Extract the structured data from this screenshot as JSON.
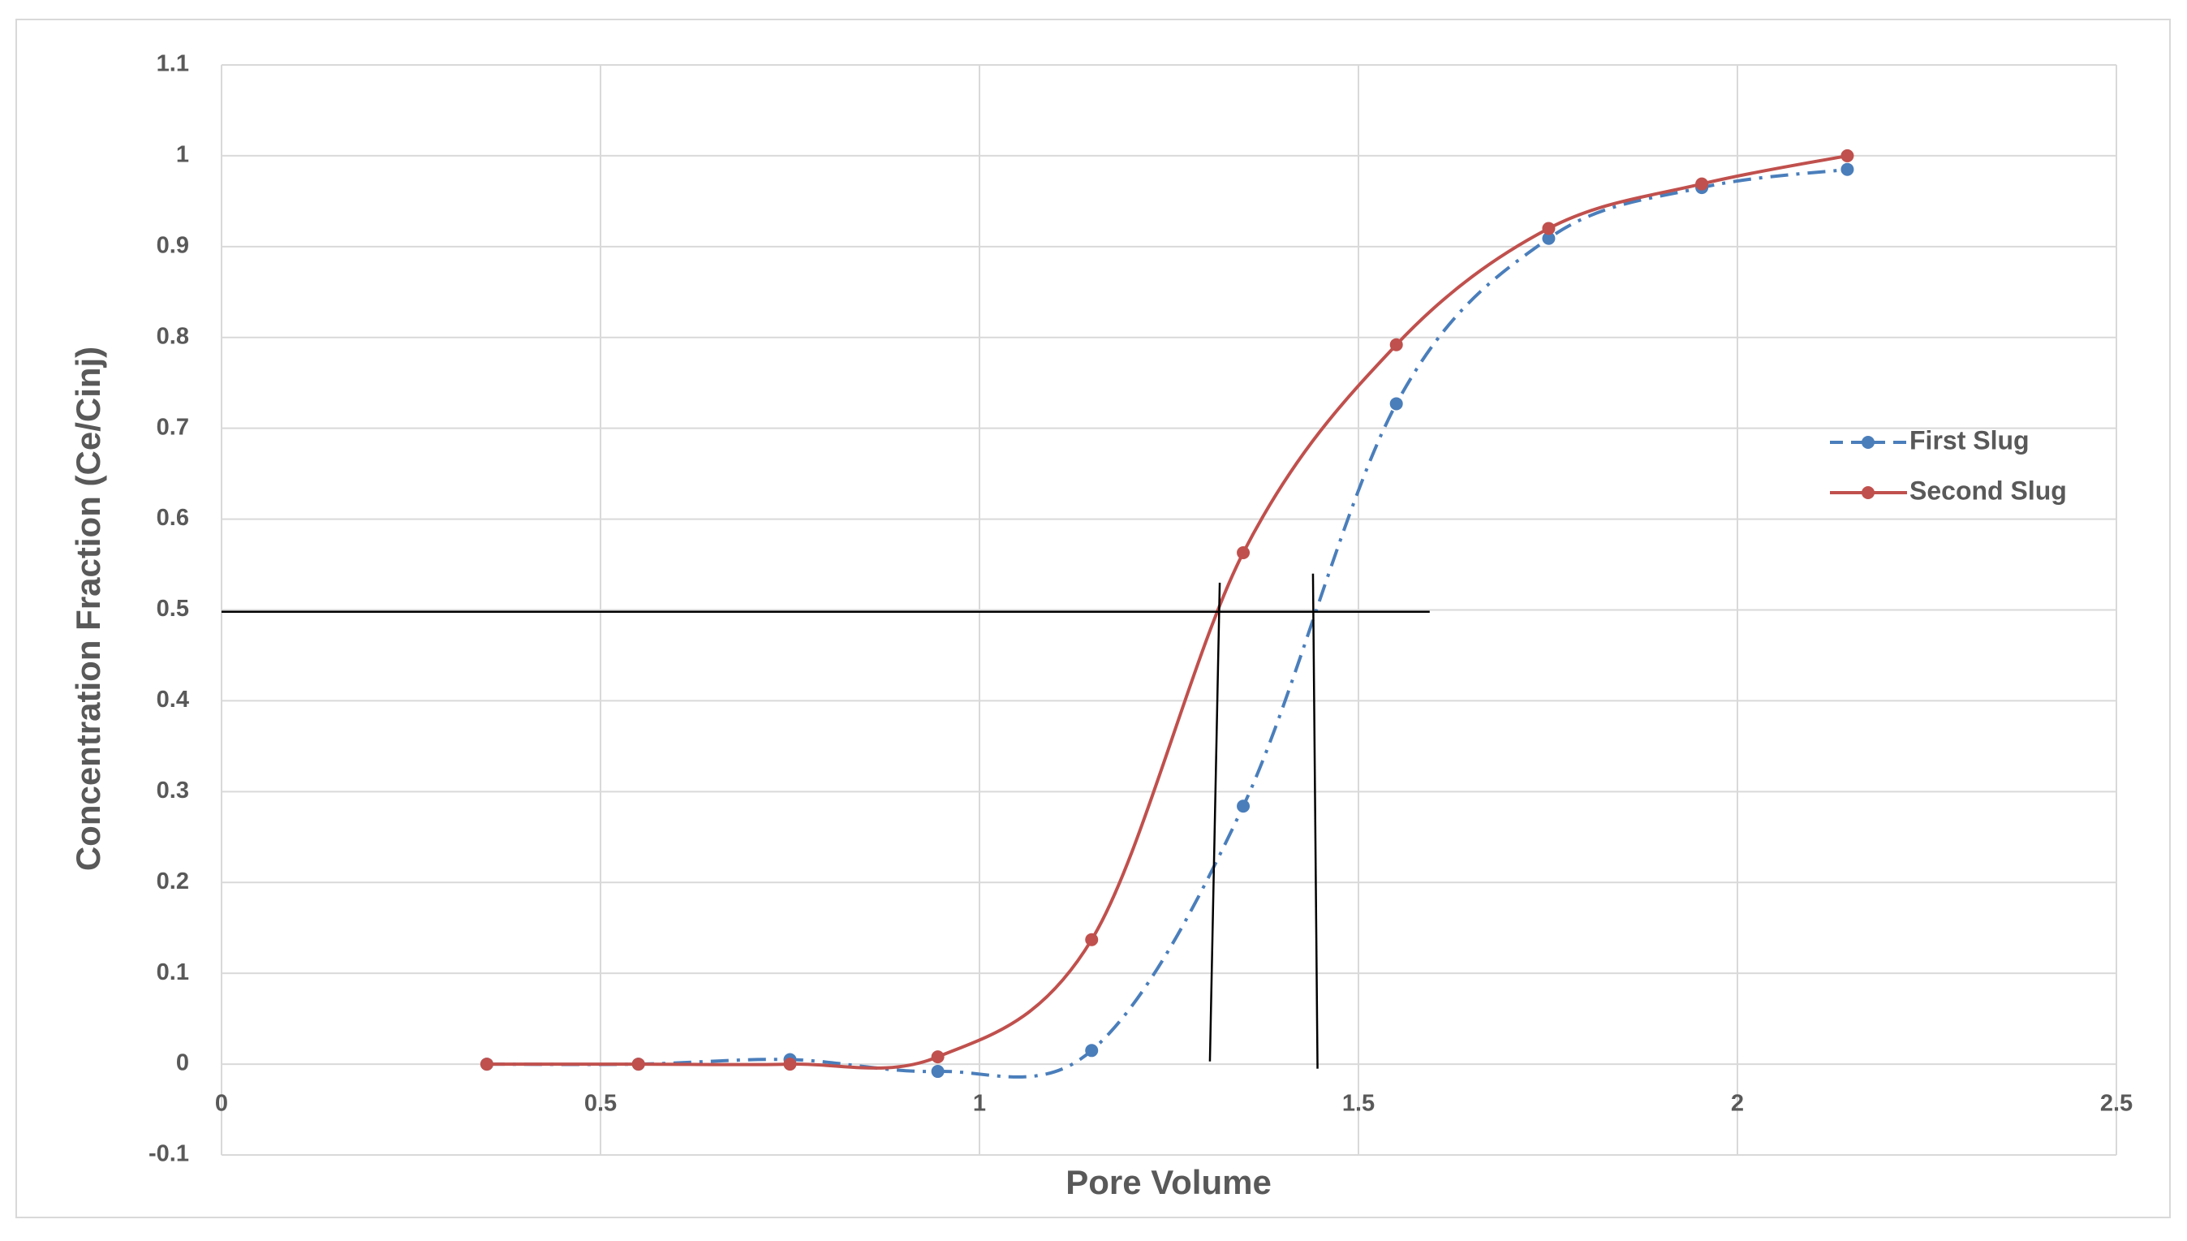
{
  "chart_data": {
    "type": "line",
    "xlabel": "Pore Volume",
    "ylabel": "Concentration Fraction (Ce/Cinj)",
    "series": [
      {
        "name": "First Slug",
        "color": "#4a7ebb",
        "line_style": "dashdot",
        "x": [
          0.35,
          0.55,
          0.75,
          0.945,
          1.148,
          1.348,
          1.55,
          1.751,
          1.953,
          2.145
        ],
        "values": [
          0,
          0,
          0.005,
          -0.008,
          0.015,
          0.284,
          0.727,
          0.909,
          0.965,
          0.985
        ]
      },
      {
        "name": "Second Slug",
        "color": "#c0504d",
        "line_style": "solid",
        "x": [
          0.35,
          0.55,
          0.75,
          0.945,
          1.148,
          1.348,
          1.55,
          1.751,
          1.953,
          2.145
        ],
        "values": [
          0,
          0,
          0,
          0.008,
          0.137,
          0.563,
          0.792,
          0.92,
          0.969,
          1.0
        ]
      }
    ],
    "reference_lines": [
      {
        "x": [
          0,
          1.594
        ],
        "y": [
          0.498,
          0.498
        ]
      },
      {
        "x": [
          1.304,
          1.317
        ],
        "y": [
          0.003,
          0.53
        ]
      },
      {
        "x": [
          1.446,
          1.44
        ],
        "y": [
          -0.005,
          0.54
        ]
      }
    ],
    "xlim": [
      0,
      2.5
    ],
    "xticks": [
      0,
      0.5,
      1,
      1.5,
      2,
      2.5
    ],
    "ylim": [
      -0.1,
      1.1
    ],
    "yticks": [
      -0.1,
      0,
      0.1,
      0.2,
      0.3,
      0.4,
      0.5,
      0.6,
      0.7,
      0.8,
      0.9,
      1,
      1.1
    ],
    "grid": true,
    "legend": "right",
    "smooth": true
  }
}
